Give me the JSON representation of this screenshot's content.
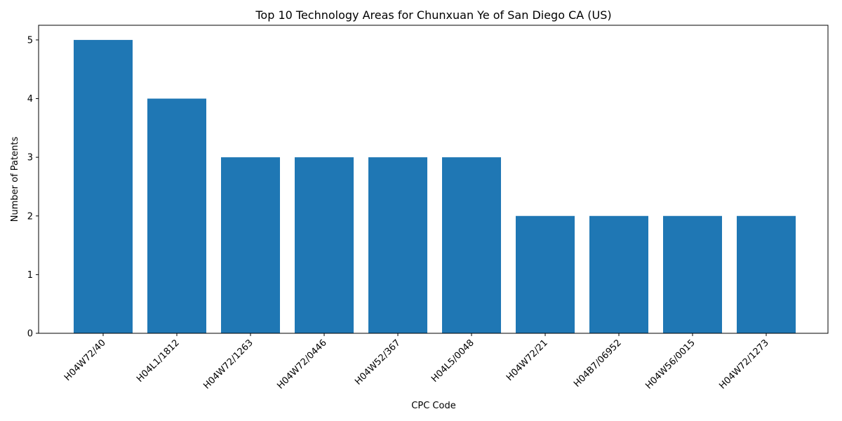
{
  "chart_data": {
    "type": "bar",
    "title": "Top 10 Technology Areas for Chunxuan Ye of San Diego CA (US)",
    "xlabel": "CPC Code",
    "ylabel": "Number of Patents",
    "categories": [
      "H04W72/40",
      "H04L1/1812",
      "H04W72/1263",
      "H04W72/0446",
      "H04W52/367",
      "H04L5/0048",
      "H04W72/21",
      "H04B7/06952",
      "H04W56/0015",
      "H04W72/1273"
    ],
    "values": [
      5,
      4,
      3,
      3,
      3,
      3,
      2,
      2,
      2,
      2
    ],
    "ylim": [
      0,
      5.25
    ],
    "yticks": [
      0,
      1,
      2,
      3,
      4,
      5
    ],
    "bar_color": "#1f77b4",
    "grid": false,
    "legend": "none"
  }
}
